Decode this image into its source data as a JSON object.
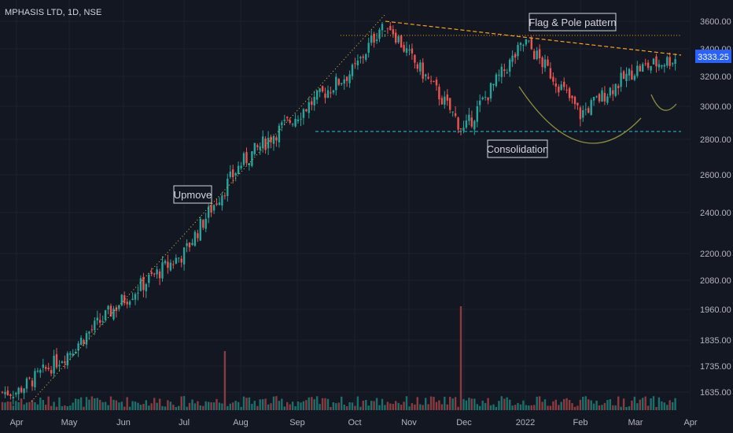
{
  "chart_data": {
    "type": "candlestick",
    "title": "MPHASIS LTD, 1D, NSE",
    "last_price_label": "3333.25",
    "colors": {
      "background": "#131722",
      "up": "#26a69a",
      "down": "#ef5350",
      "up_volume": "#1d6f6a",
      "down_volume": "#8a3b3f",
      "axis_text": "#b2b5be",
      "price_tag": "#2962ff",
      "trend_orange": "#f7a21b",
      "support_cyan": "#26c6da",
      "curve_olive": "#8d8d3c",
      "pole_line": "#e0c040"
    },
    "price_axis_ticks": [
      "3600.00",
      "3400.00",
      "3200.00",
      "3000.00",
      "2800.00",
      "2600.00",
      "2400.00",
      "2200.00",
      "2080.00",
      "1960.00",
      "1835.00",
      "1735.00",
      "1635.00"
    ],
    "time_axis_ticks": [
      "Apr",
      "May",
      "Jun",
      "Jul",
      "Aug",
      "Sep",
      "Oct",
      "Nov",
      "Dec",
      "2022",
      "Feb",
      "Mar",
      "Apr"
    ],
    "annotations": [
      "Flag & Pole pattern",
      "Upmove",
      "Consolidation"
    ],
    "price_series_key_points": [
      {
        "x": "Apr",
        "close": 1635
      },
      {
        "x": "May",
        "close": 1790
      },
      {
        "x": "Jun",
        "close": 2000
      },
      {
        "x": "Jul",
        "close": 2200
      },
      {
        "x": "Aug",
        "close": 2660
      },
      {
        "x": "Sep",
        "close": 2950
      },
      {
        "x": "Oct",
        "close": 3250
      },
      {
        "x": "mid-Oct",
        "close": 3620
      },
      {
        "x": "Nov",
        "close": 3350
      },
      {
        "x": "Dec",
        "close": 2850
      },
      {
        "x": "2022",
        "close": 3450
      },
      {
        "x": "Feb",
        "close": 2950
      },
      {
        "x": "Mar",
        "close": 3250
      },
      {
        "x": "end",
        "close": 3333.25
      }
    ],
    "levels": {
      "resistance": 3480,
      "support": 2850
    }
  }
}
